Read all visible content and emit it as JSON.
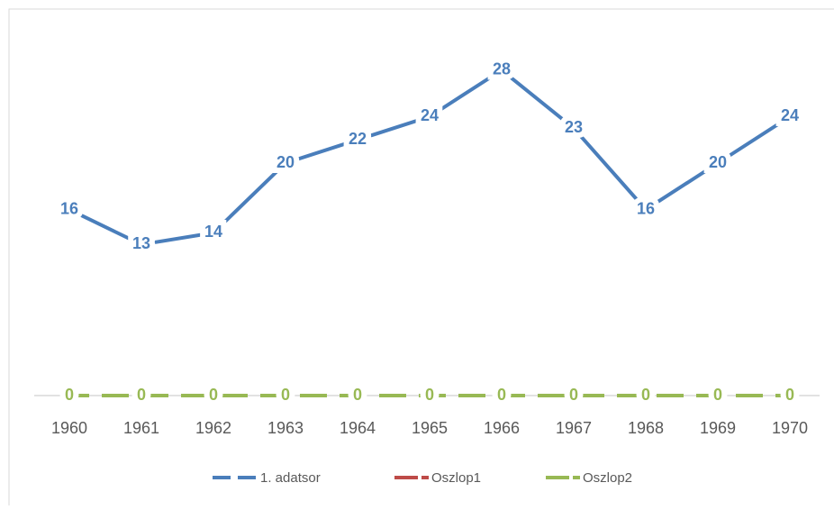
{
  "chart_data": {
    "type": "line",
    "categories": [
      "1960",
      "1961",
      "1962",
      "1963",
      "1964",
      "1965",
      "1966",
      "1967",
      "1968",
      "1969",
      "1970"
    ],
    "series": [
      {
        "name": "1. adatsor",
        "color": "#4a7ebb",
        "values": [
          16,
          13,
          14,
          20,
          22,
          24,
          28,
          23,
          16,
          20,
          24
        ]
      },
      {
        "name": "Oszlop1",
        "color": "#be4b48",
        "values": [
          0,
          0,
          0,
          0,
          0,
          0,
          0,
          0,
          0,
          0,
          0
        ]
      },
      {
        "name": "Oszlop2",
        "color": "#98b954",
        "values": [
          0,
          0,
          0,
          0,
          0,
          0,
          0,
          0,
          0,
          0,
          0
        ]
      }
    ],
    "ylim": [
      0,
      30
    ],
    "legend": "bottom",
    "data_labels": true
  }
}
